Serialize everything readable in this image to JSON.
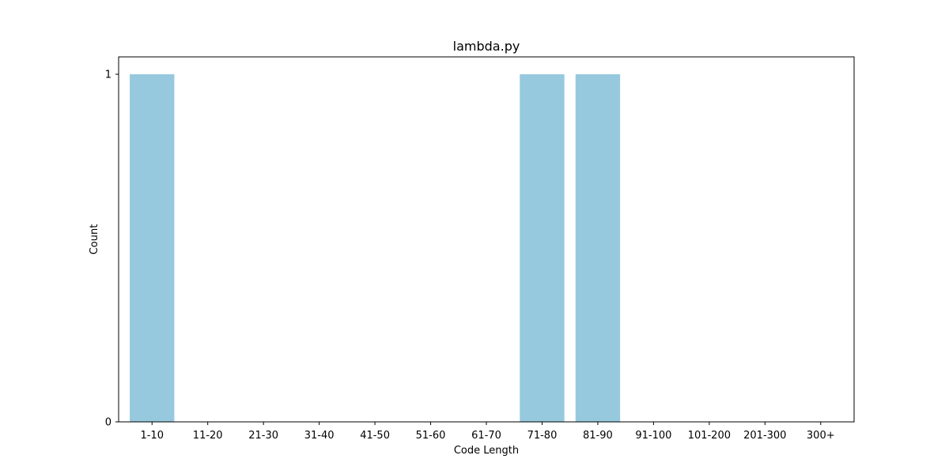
{
  "chart_data": {
    "type": "bar",
    "title": "lambda.py",
    "xlabel": "Code Length",
    "ylabel": "Count",
    "categories": [
      "1-10",
      "11-20",
      "21-30",
      "31-40",
      "41-50",
      "51-60",
      "61-70",
      "71-80",
      "81-90",
      "91-100",
      "101-200",
      "201-300",
      "300+"
    ],
    "values": [
      1,
      0,
      0,
      0,
      0,
      0,
      0,
      1,
      1,
      0,
      0,
      0,
      0
    ],
    "ylim": [
      0,
      1.05
    ],
    "yticks": [
      0,
      1
    ],
    "grid": false,
    "legend": "none",
    "bar_color": "#96C9DE"
  }
}
